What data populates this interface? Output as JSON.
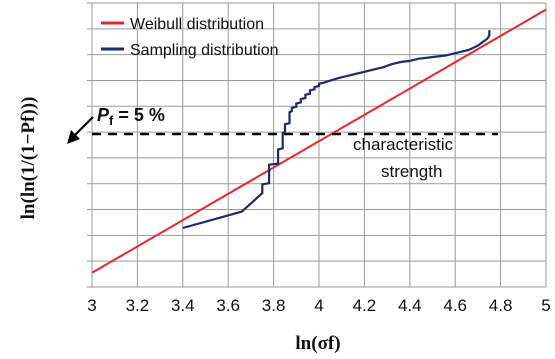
{
  "chart_data": {
    "type": "line",
    "title": "",
    "xlabel": "ln(σf)",
    "ylabel": "ln(ln(1/(1−Pf)))",
    "xlim": [
      3,
      5
    ],
    "x_ticks": [
      3,
      3.2,
      3.4,
      3.6,
      3.8,
      4,
      4.2,
      4.4,
      4.6,
      4.8,
      5
    ],
    "x_tick_labels": [
      "3",
      "3.2",
      "3.4",
      "3.6",
      "3.8",
      "4",
      "4.2",
      "4.4",
      "4.6",
      "4.8",
      "5"
    ],
    "y_ticks_shown": false,
    "grid": true,
    "legend_position": "top-left",
    "series": [
      {
        "name": "Weibull distribution",
        "color": "#e8262a",
        "style": "straight-line",
        "x": [
          3.0,
          5.0
        ],
        "y": [
          -9.35,
          2.7
        ]
      },
      {
        "name": "Sampling distribution",
        "color": "#1f2a6b",
        "style": "step-line",
        "x": [
          3.4,
          3.66,
          3.75,
          3.75,
          3.78,
          3.78,
          3.82,
          3.82,
          3.84,
          3.84,
          3.85,
          3.85,
          3.87,
          3.87,
          3.88,
          3.88,
          3.9,
          3.9,
          3.92,
          3.92,
          3.94,
          3.94,
          3.96,
          3.96,
          3.98,
          3.98,
          4.0,
          4.0,
          4.02,
          4.05,
          4.08,
          4.12,
          4.16,
          4.2,
          4.24,
          4.28,
          4.32,
          4.36,
          4.4,
          4.44,
          4.48,
          4.52,
          4.56,
          4.6,
          4.66,
          4.7,
          4.72,
          4.74,
          4.75,
          4.75
        ],
        "y": [
          -7.3,
          -6.55,
          -5.7,
          -5.3,
          -5.25,
          -4.4,
          -4.35,
          -3.7,
          -3.65,
          -2.95,
          -2.9,
          -2.55,
          -2.5,
          -2.0,
          -1.95,
          -1.8,
          -1.75,
          -1.6,
          -1.55,
          -1.4,
          -1.35,
          -1.2,
          -1.15,
          -1.0,
          -0.95,
          -0.85,
          -0.8,
          -0.7,
          -0.65,
          -0.55,
          -0.45,
          -0.35,
          -0.25,
          -0.15,
          -0.05,
          0.05,
          0.2,
          0.3,
          0.35,
          0.45,
          0.5,
          0.55,
          0.6,
          0.7,
          0.85,
          1.05,
          1.2,
          1.35,
          1.5,
          1.75
        ]
      }
    ],
    "annotations": {
      "pf_label": "= 5 %",
      "pf_symbol": "P",
      "pf_subscript": "f",
      "pf_y": -3.0,
      "char_line_1": "characteristic",
      "char_line_2": "strength",
      "dashed_line_y": -3.0
    }
  }
}
